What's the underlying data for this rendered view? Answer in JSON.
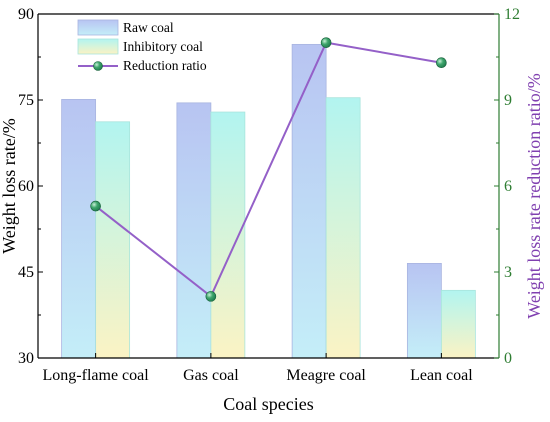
{
  "chart_data": {
    "type": "bar",
    "categories": [
      "Long-flame coal",
      "Gas coal",
      "Meagre coal",
      "Lean coal"
    ],
    "series": [
      {
        "name": "Raw coal",
        "axis": "left",
        "values": [
          75.1,
          74.5,
          84.7,
          46.5
        ]
      },
      {
        "name": "Inhibitory coal",
        "axis": "left",
        "values": [
          71.2,
          72.9,
          75.4,
          41.8
        ]
      },
      {
        "name": "Reduction ratio",
        "axis": "right",
        "type": "line",
        "values": [
          5.3,
          2.15,
          11.0,
          10.3
        ]
      }
    ],
    "xlabel": "Coal species",
    "ylabel": "Weight loss rate/%",
    "ylabel_right": "Weight loss rate reduction ratio/%",
    "ylim": [
      30,
      90
    ],
    "ylim_right": [
      0,
      12
    ],
    "yticks": [
      "30",
      "45",
      "60",
      "75",
      "90"
    ],
    "yticks_right": [
      "0",
      "3",
      "6",
      "9",
      "12"
    ],
    "legend_position": "top-left",
    "colors": {
      "raw_top": "#b8c4f2",
      "raw_bottom": "#c4eef8",
      "inhib_top": "#b2f4f0",
      "inhib_bottom": "#fbf3c4",
      "line": "#9460c8",
      "marker": "#1e7a4c",
      "right_axis": "#2e7d32",
      "right_title": "#8040b0"
    }
  }
}
